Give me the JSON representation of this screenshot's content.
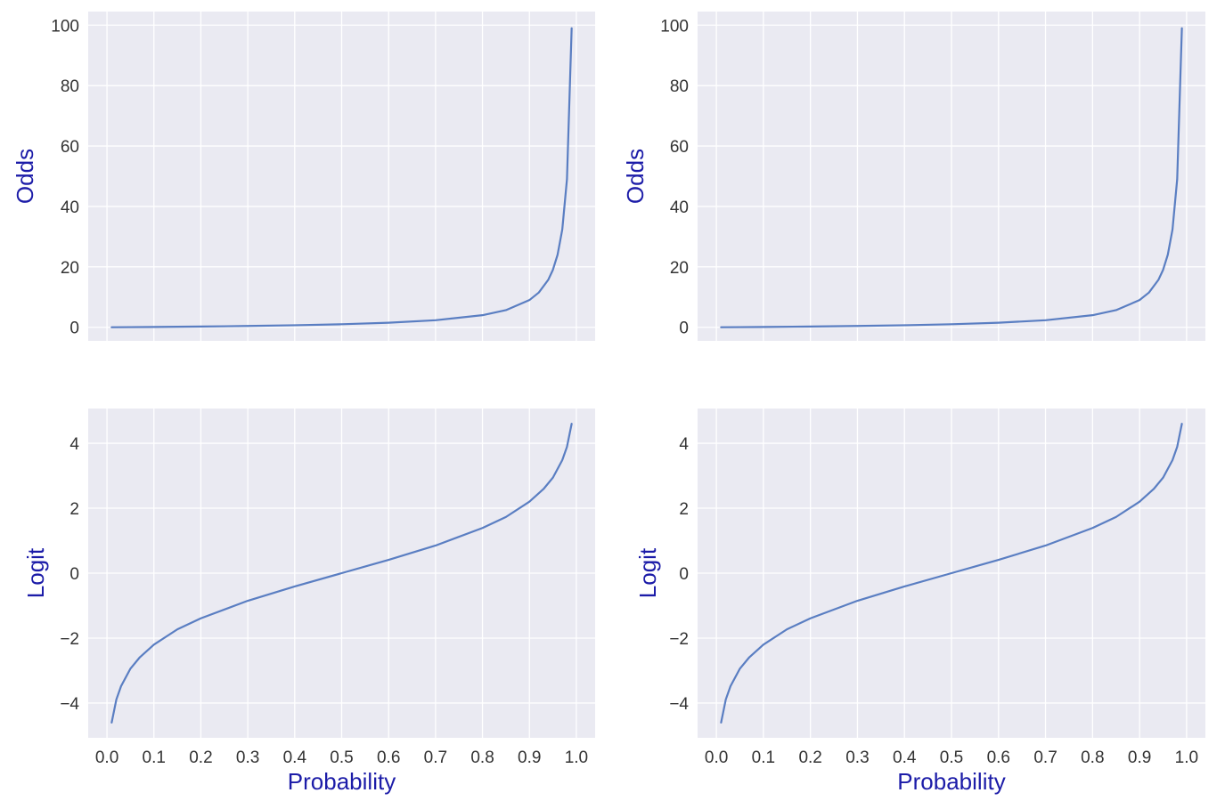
{
  "colors": {
    "axes_background": "#eaeaf2",
    "grid": "#ffffff",
    "line": "#5a7ec2",
    "axis_label": "#1c1ca8",
    "tick_label": "#333333"
  },
  "chart_data": [
    {
      "type": "line",
      "panel": "top-left",
      "title": "",
      "xlabel": "",
      "ylabel": "Odds",
      "xlim": [
        -0.04,
        1.04
      ],
      "ylim": [
        -4.5,
        104.5
      ],
      "xticks": [
        0.0,
        0.1,
        0.2,
        0.3,
        0.4,
        0.5,
        0.6,
        0.7,
        0.8,
        0.9,
        1.0
      ],
      "xtick_labels": [],
      "yticks": [
        0,
        20,
        40,
        60,
        80,
        100
      ],
      "ytick_labels": [
        "0",
        "20",
        "40",
        "60",
        "80",
        "100"
      ],
      "grid": true,
      "series": [
        {
          "x": [
            0.01,
            0.05,
            0.1,
            0.2,
            0.3,
            0.4,
            0.5,
            0.6,
            0.7,
            0.8,
            0.85,
            0.9,
            0.92,
            0.94,
            0.95,
            0.96,
            0.97,
            0.98,
            0.99
          ],
          "y": [
            0.01,
            0.05,
            0.11,
            0.25,
            0.43,
            0.67,
            1.0,
            1.5,
            2.33,
            4.0,
            5.67,
            9.0,
            11.5,
            15.67,
            19.0,
            24.0,
            32.33,
            49.0,
            99.0
          ]
        }
      ]
    },
    {
      "type": "line",
      "panel": "top-right",
      "title": "",
      "xlabel": "",
      "ylabel": "Odds",
      "xlim": [
        -0.04,
        1.04
      ],
      "ylim": [
        -4.5,
        104.5
      ],
      "xticks": [
        0.0,
        0.1,
        0.2,
        0.3,
        0.4,
        0.5,
        0.6,
        0.7,
        0.8,
        0.9,
        1.0
      ],
      "xtick_labels": [],
      "yticks": [
        0,
        20,
        40,
        60,
        80,
        100
      ],
      "ytick_labels": [
        "0",
        "20",
        "40",
        "60",
        "80",
        "100"
      ],
      "grid": true,
      "series": [
        {
          "x": [
            0.01,
            0.05,
            0.1,
            0.2,
            0.3,
            0.4,
            0.5,
            0.6,
            0.7,
            0.8,
            0.85,
            0.9,
            0.92,
            0.94,
            0.95,
            0.96,
            0.97,
            0.98,
            0.99
          ],
          "y": [
            0.01,
            0.05,
            0.11,
            0.25,
            0.43,
            0.67,
            1.0,
            1.5,
            2.33,
            4.0,
            5.67,
            9.0,
            11.5,
            15.67,
            19.0,
            24.0,
            32.33,
            49.0,
            99.0
          ]
        }
      ]
    },
    {
      "type": "line",
      "panel": "bottom-left",
      "title": "",
      "xlabel": "Probability",
      "ylabel": "Logit",
      "xlim": [
        -0.04,
        1.04
      ],
      "ylim": [
        -5.07,
        5.07
      ],
      "xticks": [
        0.0,
        0.1,
        0.2,
        0.3,
        0.4,
        0.5,
        0.6,
        0.7,
        0.8,
        0.9,
        1.0
      ],
      "xtick_labels": [
        "0.0",
        "0.1",
        "0.2",
        "0.3",
        "0.4",
        "0.5",
        "0.6",
        "0.7",
        "0.8",
        "0.9",
        "1.0"
      ],
      "yticks": [
        -4,
        -2,
        0,
        2,
        4
      ],
      "ytick_labels": [
        "−4",
        "−2",
        "0",
        "2",
        "4"
      ],
      "grid": true,
      "series": [
        {
          "x": [
            0.01,
            0.02,
            0.03,
            0.05,
            0.07,
            0.1,
            0.15,
            0.2,
            0.3,
            0.4,
            0.5,
            0.6,
            0.7,
            0.8,
            0.85,
            0.9,
            0.93,
            0.95,
            0.97,
            0.98,
            0.99
          ],
          "y": [
            -4.6,
            -3.89,
            -3.48,
            -2.94,
            -2.59,
            -2.2,
            -1.73,
            -1.39,
            -0.85,
            -0.41,
            0.0,
            0.41,
            0.85,
            1.39,
            1.73,
            2.2,
            2.59,
            2.94,
            3.48,
            3.89,
            4.6
          ]
        }
      ]
    },
    {
      "type": "line",
      "panel": "bottom-right",
      "title": "",
      "xlabel": "Probability",
      "ylabel": "Logit",
      "xlim": [
        -0.04,
        1.04
      ],
      "ylim": [
        -5.07,
        5.07
      ],
      "xticks": [
        0.0,
        0.1,
        0.2,
        0.3,
        0.4,
        0.5,
        0.6,
        0.7,
        0.8,
        0.9,
        1.0
      ],
      "xtick_labels": [
        "0.0",
        "0.1",
        "0.2",
        "0.3",
        "0.4",
        "0.5",
        "0.6",
        "0.7",
        "0.8",
        "0.9",
        "1.0"
      ],
      "yticks": [
        -4,
        -2,
        0,
        2,
        4
      ],
      "ytick_labels": [
        "−4",
        "−2",
        "0",
        "2",
        "4"
      ],
      "grid": true,
      "series": [
        {
          "x": [
            0.01,
            0.02,
            0.03,
            0.05,
            0.07,
            0.1,
            0.15,
            0.2,
            0.3,
            0.4,
            0.5,
            0.6,
            0.7,
            0.8,
            0.85,
            0.9,
            0.93,
            0.95,
            0.97,
            0.98,
            0.99
          ],
          "y": [
            -4.6,
            -3.89,
            -3.48,
            -2.94,
            -2.59,
            -2.2,
            -1.73,
            -1.39,
            -0.85,
            -0.41,
            0.0,
            0.41,
            0.85,
            1.39,
            1.73,
            2.2,
            2.59,
            2.94,
            3.48,
            3.89,
            4.6
          ]
        }
      ]
    }
  ]
}
